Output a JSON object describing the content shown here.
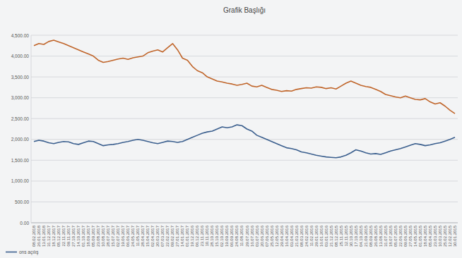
{
  "chart_data": {
    "type": "line",
    "title": "Grafik Başlığı",
    "categories": [
      "08.02.2018",
      "26.01.2018",
      "13.01.2018",
      "31.12.2017",
      "18.12.2017",
      "05.12.2017",
      "22.11.2017",
      "09.11.2017",
      "27.10.2017",
      "14.10.2017",
      "01.10.2017",
      "18.09.2017",
      "05.09.2017",
      "23.08.2017",
      "10.08.2017",
      "28.07.2017",
      "15.07.2017",
      "02.07.2017",
      "19.06.2017",
      "06.06.2017",
      "24.05.2017",
      "11.05.2017",
      "28.04.2017",
      "15.04.2017",
      "02.04.2017",
      "20.03.2017",
      "07.03.2017",
      "22.02.2017",
      "09.02.2017",
      "27.01.2017",
      "14.01.2017",
      "01.01.2017",
      "19.12.2016",
      "06.12.2016",
      "23.11.2016",
      "10.11.2016",
      "28.10.2016",
      "15.10.2016",
      "02.10.2016",
      "19.09.2016",
      "06.09.2016",
      "24.08.2016",
      "11.08.2016",
      "29.07.2016",
      "16.07.2016",
      "03.07.2016",
      "20.06.2016",
      "07.06.2016",
      "25.05.2016",
      "12.05.2016",
      "29.04.2016",
      "16.04.2016",
      "03.04.2016",
      "21.03.2016",
      "08.03.2016",
      "24.02.2016",
      "11.02.2016",
      "29.01.2016",
      "16.01.2016",
      "03.01.2016",
      "21.12.2015",
      "08.12.2015",
      "25.11.2015",
      "12.11.2015",
      "30.10.2015",
      "17.10.2015",
      "04.10.2015",
      "21.09.2015",
      "08.09.2015",
      "26.08.2015",
      "13.08.2015",
      "31.07.2015",
      "18.07.2015",
      "05.07.2015",
      "22.06.2015",
      "09.06.2015",
      "27.05.2015",
      "14.05.2015",
      "01.05.2015",
      "18.04.2015",
      "05.04.2015",
      "23.03.2015",
      "10.03.2015",
      "25.02.2015",
      "12.02.2015",
      "30.01.2015"
    ],
    "series": [
      {
        "name": "ons açılış",
        "color": "#3b5f8e",
        "values": [
          1950,
          1980,
          1960,
          1920,
          1900,
          1930,
          1950,
          1940,
          1900,
          1880,
          1920,
          1960,
          1950,
          1900,
          1850,
          1870,
          1880,
          1900,
          1930,
          1950,
          1980,
          2000,
          1980,
          1950,
          1920,
          1900,
          1930,
          1960,
          1950,
          1930,
          1950,
          2000,
          2050,
          2100,
          2150,
          2180,
          2200,
          2250,
          2300,
          2280,
          2300,
          2350,
          2330,
          2250,
          2200,
          2100,
          2050,
          2000,
          1950,
          1900,
          1850,
          1800,
          1780,
          1750,
          1700,
          1680,
          1650,
          1620,
          1600,
          1580,
          1570,
          1560,
          1580,
          1620,
          1680,
          1750,
          1720,
          1680,
          1650,
          1660,
          1640,
          1680,
          1720,
          1750,
          1780,
          1820,
          1860,
          1900,
          1880,
          1850,
          1870,
          1900,
          1920,
          1960,
          2000,
          2050
        ]
      },
      {
        "color": "#c0652a",
        "values": [
          4250,
          4300,
          4280,
          4350,
          4380,
          4340,
          4300,
          4250,
          4200,
          4150,
          4100,
          4050,
          4000,
          3900,
          3850,
          3870,
          3900,
          3930,
          3950,
          3920,
          3960,
          3980,
          4000,
          4080,
          4120,
          4150,
          4100,
          4200,
          4300,
          4150,
          3950,
          3900,
          3750,
          3650,
          3600,
          3500,
          3450,
          3400,
          3380,
          3350,
          3330,
          3300,
          3320,
          3350,
          3280,
          3260,
          3300,
          3250,
          3200,
          3180,
          3150,
          3170,
          3160,
          3200,
          3220,
          3240,
          3230,
          3260,
          3250,
          3220,
          3240,
          3210,
          3280,
          3350,
          3400,
          3350,
          3300,
          3270,
          3250,
          3200,
          3150,
          3080,
          3050,
          3020,
          3000,
          3040,
          3000,
          2960,
          2950,
          2980,
          2900,
          2850,
          2880,
          2800,
          2700,
          2620
        ]
      }
    ],
    "ylim": [
      0,
      4500
    ],
    "yticks": [
      {
        "value": 0,
        "label": "0.00"
      },
      {
        "value": 500,
        "label": "500.00"
      },
      {
        "value": 1000,
        "label": "1,000.00"
      },
      {
        "value": 1500,
        "label": "1,500.00"
      },
      {
        "value": 2000,
        "label": "2,000.00"
      },
      {
        "value": 2500,
        "label": "2,500.00"
      },
      {
        "value": 3000,
        "label": "3,000.00"
      },
      {
        "value": 3500,
        "label": "3,500.00"
      },
      {
        "value": 4000,
        "label": "4,000.00"
      },
      {
        "value": 4500,
        "label": "4,500.00"
      }
    ],
    "grid": true,
    "legend": "bottom"
  }
}
